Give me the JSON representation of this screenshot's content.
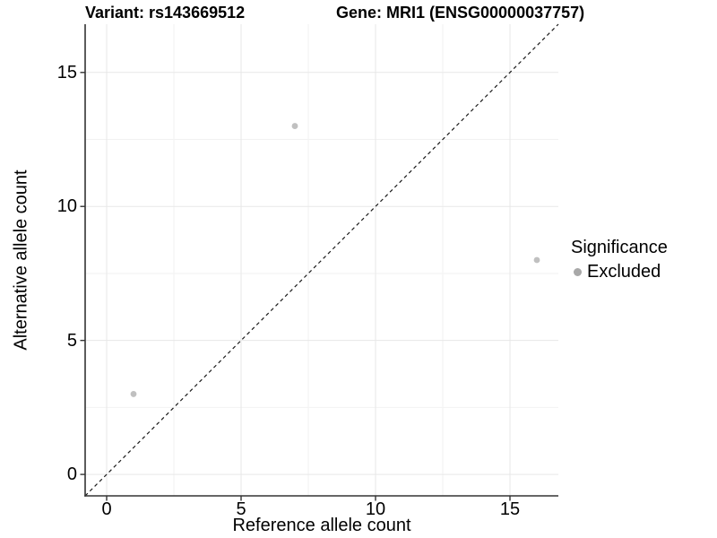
{
  "header": {
    "variant_title": "Variant: rs143669512",
    "gene_title": "Gene: MRI1 (ENSG00000037757)"
  },
  "chart_data": {
    "type": "scatter",
    "xlabel": "Reference allele count",
    "ylabel": "Alternative allele count",
    "xlim": [
      -0.8,
      16.8
    ],
    "ylim": [
      -0.8,
      16.8
    ],
    "x_major_ticks": [
      0,
      5,
      10,
      15
    ],
    "y_major_ticks": [
      0,
      5,
      10,
      15
    ],
    "x_minor_ticks": [
      2.5,
      7.5,
      12.5
    ],
    "y_minor_ticks": [
      2.5,
      7.5,
      12.5
    ],
    "grid": "major and minor gridlines, light grey on white",
    "points": [
      {
        "x": 1,
        "y": 3,
        "series": "Excluded"
      },
      {
        "x": 7,
        "y": 13,
        "series": "Excluded"
      },
      {
        "x": 16,
        "y": 8,
        "series": "Excluded"
      }
    ],
    "reference_line": {
      "type": "identity y=x",
      "style": "dashed",
      "color": "#1a1a1a"
    },
    "legend": {
      "title": "Significance",
      "position": "right",
      "items": [
        {
          "label": "Excluded",
          "color": "#a8a8a8"
        }
      ]
    }
  },
  "colors": {
    "background": "#ffffff",
    "point": "#c0c0c0",
    "grid_major": "#e7e7e7",
    "grid_minor": "#f2f2f2",
    "axis_line": "#333333",
    "text": "#000000"
  }
}
